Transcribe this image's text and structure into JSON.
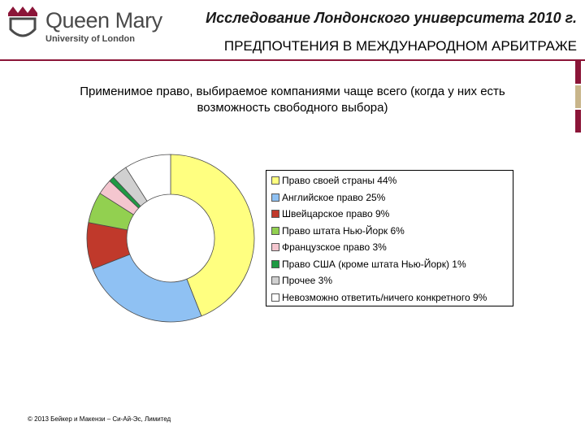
{
  "header": {
    "logo_name": "Queen Mary",
    "logo_sub": "University of London",
    "title": "Исследование Лондонского университета 2010 г.",
    "subtitle": "ПРЕДПОЧТЕНИЯ В МЕЖДУНАРОДНОМ АРБИТРАЖЕ"
  },
  "colors": {
    "accent": "#8b1538",
    "side_bars": [
      "#8b1538",
      "#c8b58a",
      "#8b1538"
    ]
  },
  "chart_data": {
    "type": "pie",
    "title_lines": [
      "Применимое право, выбираемое компаниями чаще всего (когда у них есть",
      "возможность свободного выбора)"
    ],
    "legend_position": "right",
    "slices": [
      {
        "label": "Право своей страны",
        "value": 44,
        "color": "#ffff80",
        "legend": "Право своей страны  44%"
      },
      {
        "label": "Английское право",
        "value": 25,
        "color": "#8fc1f3",
        "legend": "Английское право  25%"
      },
      {
        "label": "Швейцарское право",
        "value": 9,
        "color": "#c0392b",
        "legend": "Швейцарское право  9%"
      },
      {
        "label": "Право штата Нью-Йорк",
        "value": 6,
        "color": "#92d050",
        "legend": "Право штата Нью-Йорк  6%"
      },
      {
        "label": "Французское право",
        "value": 3,
        "color": "#f4c6cf",
        "legend": "Французское право  3%"
      },
      {
        "label": "Право США (кроме штата Нью-Йорк)",
        "value": 1,
        "color": "#1f9a44",
        "legend": "Право США (кроме штата Нью-Йорк)  1%"
      },
      {
        "label": "Прочее",
        "value": 3,
        "color": "#d0d0d0",
        "legend": "Прочее  3%"
      },
      {
        "label": "Невозможно ответить/ничего конкретного",
        "value": 9,
        "color": "#ffffff",
        "legend": "Невозможно ответить/ничего конкретного  9%"
      }
    ]
  },
  "footer": {
    "copyright": "© 2013 Бейкер и Макензи – Си-Ай-Эс, Лимитед"
  }
}
